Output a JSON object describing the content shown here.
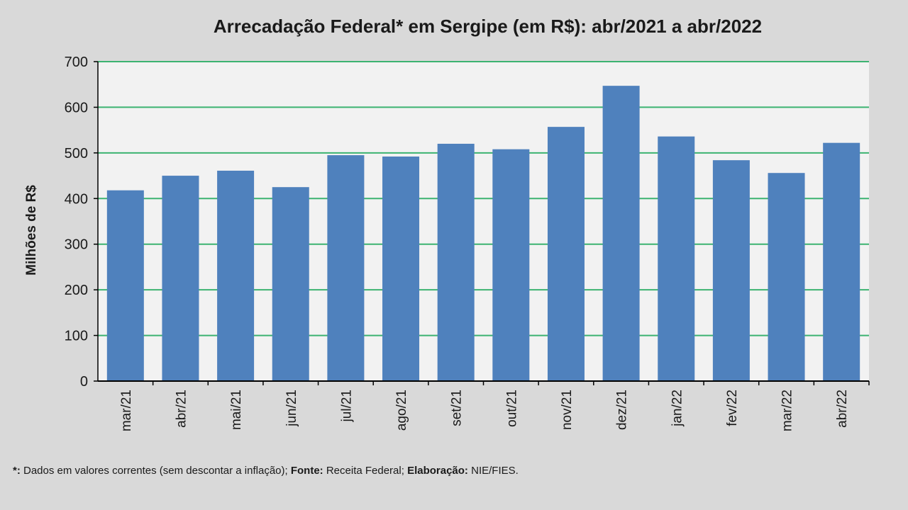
{
  "chart_data": {
    "type": "bar",
    "title": "Arrecadação Federal* em Sergipe (em R$): abr/2021 a abr/2022",
    "xlabel": "",
    "ylabel": "Milhões de R$",
    "ylim": [
      0,
      700
    ],
    "yticks": [
      0,
      100,
      200,
      300,
      400,
      500,
      600,
      700
    ],
    "grid": true,
    "categories": [
      "mar/21",
      "abr/21",
      "mai/21",
      "jun/21",
      "jul/21",
      "ago/21",
      "set/21",
      "out/21",
      "nov/21",
      "dez/21",
      "jan/22",
      "fev/22",
      "mar/22",
      "abr/22"
    ],
    "values": [
      418,
      450,
      461,
      425,
      495,
      492,
      520,
      508,
      557,
      647,
      536,
      484,
      456,
      522
    ],
    "bar_color": "#4f81bd",
    "grid_color": "#3cb371"
  },
  "footnote": {
    "star": "*:",
    "text1": " Dados em valores correntes (sem descontar a inflação); ",
    "fonte_label": "Fonte:",
    "text2": " Receita  Federal; ",
    "elab_label": "Elaboração:",
    "text3": " NIE/FIES."
  }
}
